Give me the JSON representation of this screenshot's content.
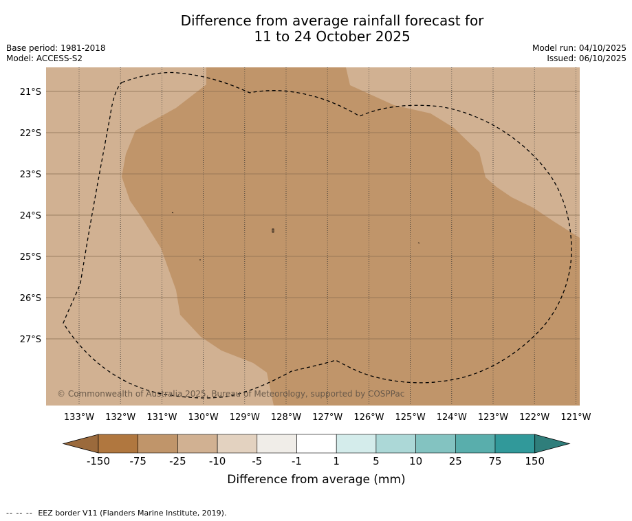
{
  "title": {
    "line1": "Difference from average rainfall forecast for",
    "line2": "11 to 24 October 2025"
  },
  "meta": {
    "base_period": "Base period: 1981-2018",
    "model": "Model: ACCESS-S2",
    "model_run": "Model run: 04/10/2025",
    "issued": "Issued: 06/10/2025"
  },
  "map": {
    "lat_labels": [
      "21°S",
      "22°S",
      "23°S",
      "24°S",
      "25°S",
      "26°S",
      "27°S"
    ],
    "lon_labels": [
      "133°W",
      "132°W",
      "131°W",
      "130°W",
      "129°W",
      "128°W",
      "127°W",
      "126°W",
      "125°W",
      "124°W",
      "123°W",
      "122°W",
      "121°W"
    ],
    "copyright": "© Commonwealth of Australia 2025, Bureau of Meteorology, supported by COSPPac",
    "colors": {
      "light_dry": "#d1b192",
      "mid_dry": "#c0956a",
      "border": "#000000"
    }
  },
  "legend": {
    "tick_labels": [
      "-150",
      "-75",
      "-25",
      "-10",
      "-5",
      "-1",
      "1",
      "5",
      "10",
      "25",
      "75",
      "150"
    ],
    "colors": [
      "#9b6a3c",
      "#b0773f",
      "#c0956a",
      "#d1b192",
      "#e3d2c0",
      "#f0ede8",
      "#ffffff",
      "#d4eceb",
      "#acd8d7",
      "#83c3c1",
      "#59aeac",
      "#31999a",
      "#2f7e7b"
    ],
    "label": "Difference from average (mm)"
  },
  "footnote": {
    "dashes": "-- -- --",
    "text": "EEZ border V11 (Flanders Marine Institute, 2019)."
  }
}
